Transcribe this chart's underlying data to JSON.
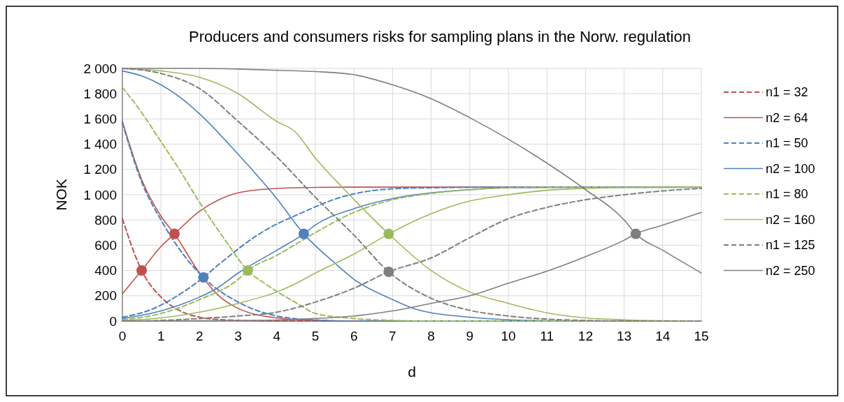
{
  "chart_data": {
    "type": "line",
    "title": "Producers and consumers risks for sampling plans in the Norw. regulation",
    "xlabel": "d",
    "ylabel": "NOK",
    "xlim": [
      0,
      15
    ],
    "xticks": [
      0,
      1,
      2,
      3,
      4,
      5,
      6,
      7,
      8,
      9,
      10,
      11,
      12,
      13,
      14,
      15
    ],
    "ylim": [
      0,
      2000
    ],
    "yticks": [
      0,
      200,
      400,
      600,
      800,
      {
        "value": 1000,
        "label": "1 000"
      },
      {
        "value": 1200,
        "label": "1 200"
      },
      {
        "value": 1400,
        "label": "1 400"
      },
      {
        "value": 1600,
        "label": "1 600"
      },
      {
        "value": 1800,
        "label": "1 800"
      },
      {
        "value": 2000,
        "label": "2 000"
      }
    ],
    "grid": true,
    "legend": "right",
    "marker": "none",
    "series": [
      {
        "name": "n1 = 32",
        "color": "#c0504d",
        "line_style": "dashed",
        "x": [
          0,
          0.5,
          1,
          1.5,
          2,
          2.5,
          3,
          4,
          5,
          15
        ],
        "values": [
          810,
          400,
          190,
          80,
          30,
          12,
          5,
          0,
          0,
          0
        ]
      },
      {
        "name": "n2 = 64",
        "color": "#c0504d",
        "line_style": "solid",
        "x": [
          0,
          0.5,
          1,
          1.35,
          2,
          2.5,
          3,
          4,
          5,
          6,
          15
        ],
        "values": [
          1580,
          1120,
          830,
          690,
          380,
          200,
          100,
          25,
          5,
          0,
          0
        ]
      },
      {
        "color": "#c0504d",
        "line_style": "solid",
        "x": [
          0,
          0.5,
          1,
          1.35,
          2,
          2.5,
          3,
          4,
          5,
          6,
          15
        ],
        "values": [
          215,
          400,
          590,
          690,
          870,
          960,
          1015,
          1050,
          1058,
          1060,
          1060
        ]
      },
      {
        "name": "n1 = 50",
        "color": "#4f81bd",
        "line_style": "dashed",
        "x": [
          0,
          0.5,
          1,
          1.5,
          2.1,
          3,
          4,
          5,
          6,
          15
        ],
        "values": [
          1570,
          1100,
          800,
          560,
          345,
          150,
          40,
          8,
          0,
          0
        ]
      },
      {
        "color": "#4f81bd",
        "line_style": "dashed",
        "x": [
          0,
          0.77,
          1.59,
          2.1,
          2.52,
          3.6,
          4.64,
          5.69,
          7.2,
          8,
          10,
          15
        ],
        "values": [
          30,
          94,
          232,
          345,
          453,
          700,
          856,
          983,
          1050,
          1055,
          1060,
          1060
        ]
      },
      {
        "name": "n2 = 100",
        "color": "#4f81bd",
        "line_style": "solid",
        "x": [
          0,
          0.5,
          1,
          1.5,
          2,
          3,
          4,
          4.7,
          5.5,
          6,
          7,
          7.6,
          9,
          10,
          11,
          12,
          15
        ],
        "values": [
          1980,
          1940,
          1870,
          1770,
          1640,
          1320,
          970,
          690,
          460,
          330,
          170,
          94,
          30,
          10,
          3,
          0,
          0
        ]
      },
      {
        "color": "#4f81bd",
        "line_style": "solid",
        "x": [
          0,
          1,
          2,
          2.4,
          3,
          4,
          4.7,
          5,
          6,
          7,
          8,
          9,
          10,
          12,
          15
        ],
        "values": [
          20,
          80,
          190,
          250,
          380,
          560,
          690,
          760,
          890,
          970,
          1015,
          1040,
          1055,
          1060,
          1060
        ]
      },
      {
        "name": "n1 = 80",
        "color": "#9bbb59",
        "line_style": "dashed",
        "x": [
          0,
          0.5,
          1,
          1.5,
          2,
          2.65,
          3.25,
          3.74,
          4.6,
          5,
          6,
          7,
          8,
          15
        ],
        "values": [
          1850,
          1650,
          1420,
          1188,
          940,
          646,
          400,
          287,
          127,
          60,
          20,
          5,
          0,
          0
        ]
      },
      {
        "color": "#9bbb59",
        "line_style": "dashed",
        "x": [
          0,
          1,
          2,
          3,
          3.25,
          4,
          5,
          6,
          7,
          8,
          9,
          10,
          12,
          15
        ],
        "values": [
          10,
          60,
          170,
          330,
          400,
          520,
          700,
          860,
          960,
          1010,
          1040,
          1055,
          1060,
          1060
        ]
      },
      {
        "name": "n2 = 160",
        "color": "#9bbb59",
        "line_style": "solid",
        "x": [
          0,
          1,
          2,
          3,
          4,
          4.47,
          5,
          5.69,
          6.9,
          8,
          9,
          10,
          11,
          12,
          13,
          14,
          15
        ],
        "values": [
          2000,
          1980,
          1930,
          1800,
          1580,
          1500,
          1290,
          1061,
          690,
          400,
          230,
          140,
          65,
          25,
          10,
          3,
          0
        ]
      },
      {
        "color": "#9bbb59",
        "line_style": "solid",
        "x": [
          0,
          1,
          2,
          3,
          4,
          4.47,
          5,
          6,
          6.9,
          8,
          9,
          10,
          11,
          12,
          13,
          15
        ],
        "values": [
          5,
          25,
          70,
          140,
          230,
          293,
          380,
          530,
          690,
          850,
          950,
          1000,
          1035,
          1050,
          1057,
          1060
        ]
      },
      {
        "name": "n1 = 125",
        "color": "#7f7f7f",
        "line_style": "dashed",
        "x": [
          0,
          1,
          2,
          3,
          4,
          5,
          6,
          6.9,
          8,
          9,
          10,
          11,
          12,
          13,
          15
        ],
        "values": [
          2000,
          1960,
          1840,
          1580,
          1300,
          980,
          680,
          390,
          180,
          85,
          40,
          15,
          5,
          0,
          0
        ]
      },
      {
        "color": "#7f7f7f",
        "line_style": "dashed",
        "x": [
          0,
          1,
          2,
          3,
          4,
          5,
          6,
          6.9,
          8,
          9,
          10,
          11,
          12,
          13,
          14,
          15
        ],
        "values": [
          0,
          5,
          20,
          40,
          70,
          150,
          260,
          390,
          500,
          660,
          810,
          900,
          960,
          1000,
          1030,
          1050
        ]
      },
      {
        "name": "n2 = 250",
        "color": "#7f7f7f",
        "line_style": "solid",
        "x": [
          0,
          2,
          3,
          4,
          5,
          6,
          7,
          8,
          9,
          10,
          11,
          12,
          13,
          13.3,
          14,
          15
        ],
        "values": [
          2000,
          2000,
          1995,
          1985,
          1975,
          1950,
          1870,
          1760,
          1610,
          1440,
          1250,
          1040,
          800,
          690,
          560,
          380
        ]
      },
      {
        "color": "#7f7f7f",
        "line_style": "solid",
        "x": [
          0,
          2,
          4,
          5,
          6,
          7,
          8,
          9,
          10,
          11,
          12,
          13,
          13.3,
          14,
          15
        ],
        "values": [
          0,
          2,
          8,
          20,
          40,
          80,
          140,
          200,
          300,
          395,
          510,
          640,
          690,
          760,
          860
        ]
      },
      {
        "type": "scatter",
        "marker": "circle",
        "color": "#c0504d",
        "x": [
          0.5,
          1.35
        ],
        "values": [
          400,
          690
        ]
      },
      {
        "type": "scatter",
        "marker": "circle",
        "color": "#4f81bd",
        "x": [
          2.1,
          4.7
        ],
        "values": [
          345,
          690
        ]
      },
      {
        "type": "scatter",
        "marker": "circle",
        "color": "#9bbb59",
        "x": [
          3.25,
          6.9
        ],
        "values": [
          400,
          690
        ]
      },
      {
        "type": "scatter",
        "marker": "circle",
        "color": "#7f7f7f",
        "x": [
          6.9,
          13.3
        ],
        "values": [
          390,
          690
        ]
      }
    ]
  }
}
